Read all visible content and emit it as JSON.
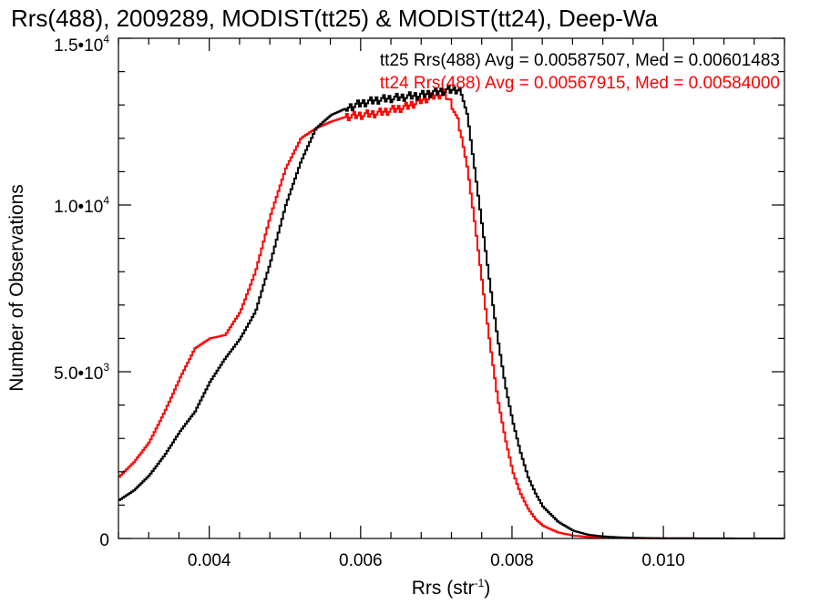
{
  "chart_data": {
    "type": "line",
    "title": "Rrs(488), 2009289, MODIST(tt25) & MODIST(tt24), Deep-Wa",
    "xlabel": "Rrs (str",
    "xlabel_sup": "-1",
    "xlabel_suffix": ")",
    "ylabel": "Number of Observations",
    "xlim": [
      0.0028,
      0.0116
    ],
    "ylim": [
      0,
      15000
    ],
    "grid": false,
    "x_ticks": [
      {
        "value": 0.004,
        "label": "0.004"
      },
      {
        "value": 0.006,
        "label": "0.006"
      },
      {
        "value": 0.008,
        "label": "0.008"
      },
      {
        "value": 0.01,
        "label": "0.010"
      }
    ],
    "y_ticks": [
      {
        "value": 0,
        "label": "0",
        "sup": ""
      },
      {
        "value": 5000,
        "label": "5.0•10",
        "sup": "3"
      },
      {
        "value": 10000,
        "label": "1.0•10",
        "sup": "4"
      },
      {
        "value": 15000,
        "label": "1.5•10",
        "sup": "4"
      }
    ],
    "annotations": [
      {
        "text": "tt25 Rrs(488) Avg = 0.00587507, Med = 0.00601483",
        "color": "#000000"
      },
      {
        "text": "tt24 Rrs(488) Avg = 0.00567915, Med = 0.00584000",
        "color": "#ff0000"
      }
    ],
    "series": [
      {
        "color": "#000000",
        "x": [
          0.0028,
          0.003,
          0.0032,
          0.0034,
          0.0036,
          0.0038,
          0.004,
          0.0042,
          0.0044,
          0.0046,
          0.0048,
          0.005,
          0.0052,
          0.0054,
          0.0056,
          0.0058,
          0.006,
          0.0062,
          0.0064,
          0.0066,
          0.0068,
          0.007,
          0.0072,
          0.0073,
          0.0074,
          0.0075,
          0.0076,
          0.0077,
          0.0078,
          0.0079,
          0.008,
          0.0081,
          0.0082,
          0.0083,
          0.0084,
          0.0086,
          0.0088,
          0.009,
          0.0092,
          0.0094,
          0.0096,
          0.0098,
          0.01,
          0.0105,
          0.011,
          0.0116
        ],
        "y": [
          1150,
          1450,
          1900,
          2500,
          3200,
          3800,
          4700,
          5400,
          6000,
          6800,
          8300,
          10000,
          11300,
          12300,
          12700,
          12900,
          13050,
          13150,
          13200,
          13250,
          13300,
          13400,
          13450,
          13480,
          12700,
          11000,
          9300,
          7600,
          6000,
          4600,
          3500,
          2600,
          1850,
          1350,
          950,
          500,
          230,
          110,
          60,
          35,
          20,
          12,
          8,
          3,
          1,
          0
        ]
      },
      {
        "color": "#ff0000",
        "x": [
          0.0028,
          0.003,
          0.0032,
          0.0034,
          0.0036,
          0.0038,
          0.004,
          0.0042,
          0.0044,
          0.0046,
          0.0048,
          0.005,
          0.0052,
          0.0054,
          0.0056,
          0.0058,
          0.006,
          0.0062,
          0.0064,
          0.0066,
          0.0068,
          0.007,
          0.0071,
          0.0072,
          0.0073,
          0.0074,
          0.0075,
          0.0076,
          0.0077,
          0.0078,
          0.0079,
          0.008,
          0.0081,
          0.0082,
          0.0083,
          0.0084,
          0.0086,
          0.0088,
          0.009,
          0.0092,
          0.0094,
          0.0096,
          0.0098,
          0.01,
          0.0105,
          0.011,
          0.0116
        ],
        "y": [
          1850,
          2300,
          2900,
          3800,
          4800,
          5700,
          6000,
          6100,
          6800,
          8000,
          9700,
          11100,
          12000,
          12300,
          12500,
          12650,
          12700,
          12750,
          12850,
          12950,
          13150,
          13300,
          13350,
          13000,
          12300,
          11100,
          9400,
          7600,
          5800,
          4200,
          3000,
          2000,
          1350,
          900,
          580,
          380,
          180,
          85,
          45,
          25,
          15,
          9,
          5,
          3,
          1,
          0,
          0
        ]
      }
    ]
  }
}
